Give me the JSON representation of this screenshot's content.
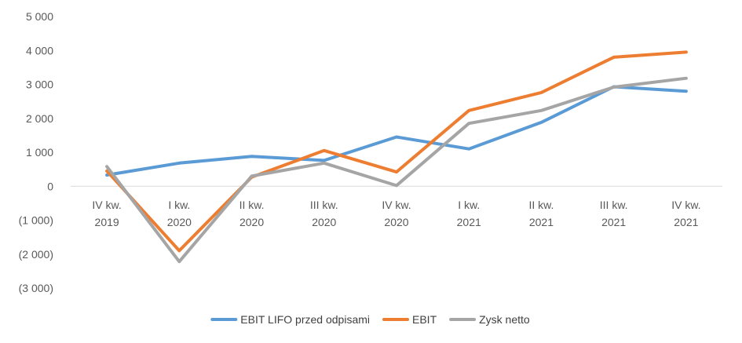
{
  "chart_data": {
    "type": "line",
    "title": "",
    "xlabel": "",
    "ylabel": "",
    "categories": [
      [
        "IV kw.",
        "2019"
      ],
      [
        "I kw.",
        "2020"
      ],
      [
        "II kw.",
        "2020"
      ],
      [
        "III kw.",
        "2020"
      ],
      [
        "IV kw.",
        "2020"
      ],
      [
        "I kw.",
        "2021"
      ],
      [
        "II kw.",
        "2021"
      ],
      [
        "III kw.",
        "2021"
      ],
      [
        "IV kw.",
        "2021"
      ]
    ],
    "ylim": [
      -3000,
      5000
    ],
    "yticks": [
      5000,
      4000,
      3000,
      2000,
      1000,
      0,
      -1000,
      -2000,
      -3000
    ],
    "ytick_labels": [
      "5 000",
      "4 000",
      "3 000",
      "2 000",
      "1 000",
      "0",
      "(1 000)",
      "(2 000)",
      "(3 000)"
    ],
    "grid": false,
    "legend_position": "bottom",
    "series": [
      {
        "name": "EBIT LIFO przed odpisami",
        "color": "#5b9bd5",
        "values": [
          330,
          680,
          880,
          760,
          1450,
          1100,
          1880,
          2930,
          2800
        ]
      },
      {
        "name": "EBIT",
        "color": "#ed7d31",
        "values": [
          450,
          -1900,
          270,
          1050,
          420,
          2230,
          2760,
          3800,
          3950
        ]
      },
      {
        "name": "Zysk netto",
        "color": "#a5a5a5",
        "values": [
          580,
          -2220,
          300,
          680,
          20,
          1850,
          2230,
          2920,
          3180
        ]
      }
    ]
  }
}
